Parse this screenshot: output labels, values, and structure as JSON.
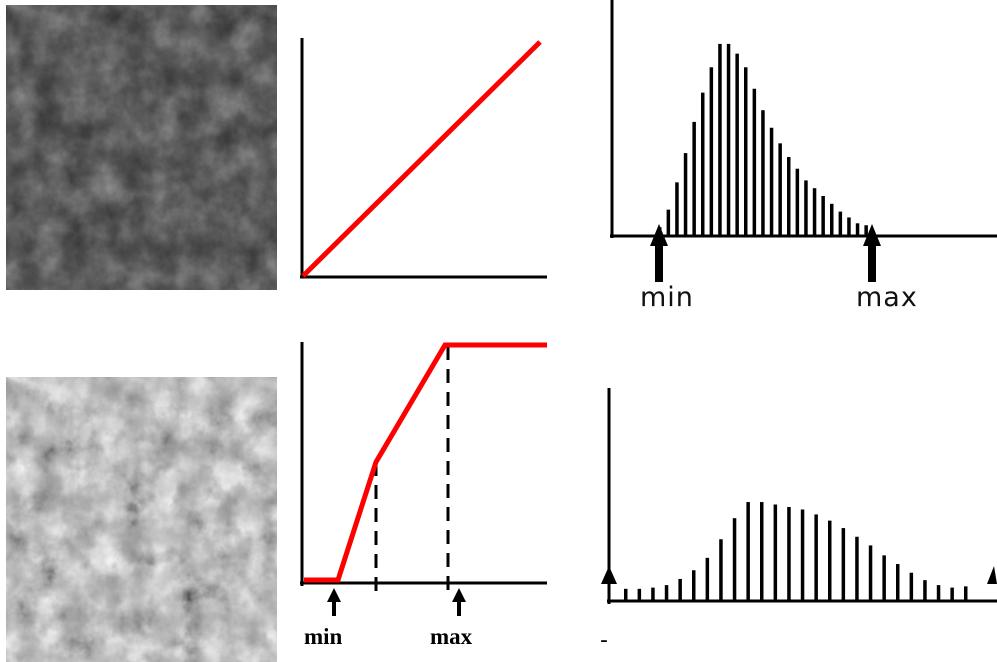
{
  "top_histogram": {
    "min_label": "min",
    "max_label": "max",
    "bars": [
      0.04,
      0.13,
      0.27,
      0.42,
      0.58,
      0.73,
      0.86,
      0.98,
      0.98,
      0.93,
      0.86,
      0.75,
      0.64,
      0.55,
      0.47,
      0.4,
      0.34,
      0.28,
      0.24,
      0.2,
      0.16,
      0.12,
      0.09,
      0.06,
      0.05
    ]
  },
  "bottom_transfer": {
    "min_label": "min",
    "max_label": "max"
  },
  "bottom_histogram": {
    "footnote": "-",
    "bars": [
      0.09,
      0.09,
      0.1,
      0.12,
      0.17,
      0.24,
      0.34,
      0.49,
      0.66,
      0.79,
      0.79,
      0.77,
      0.75,
      0.73,
      0.69,
      0.64,
      0.58,
      0.51,
      0.44,
      0.36,
      0.29,
      0.22,
      0.16,
      0.12,
      0.1,
      0.11
    ]
  },
  "colors": {
    "curve": "#ff0000",
    "ink": "#000000"
  }
}
